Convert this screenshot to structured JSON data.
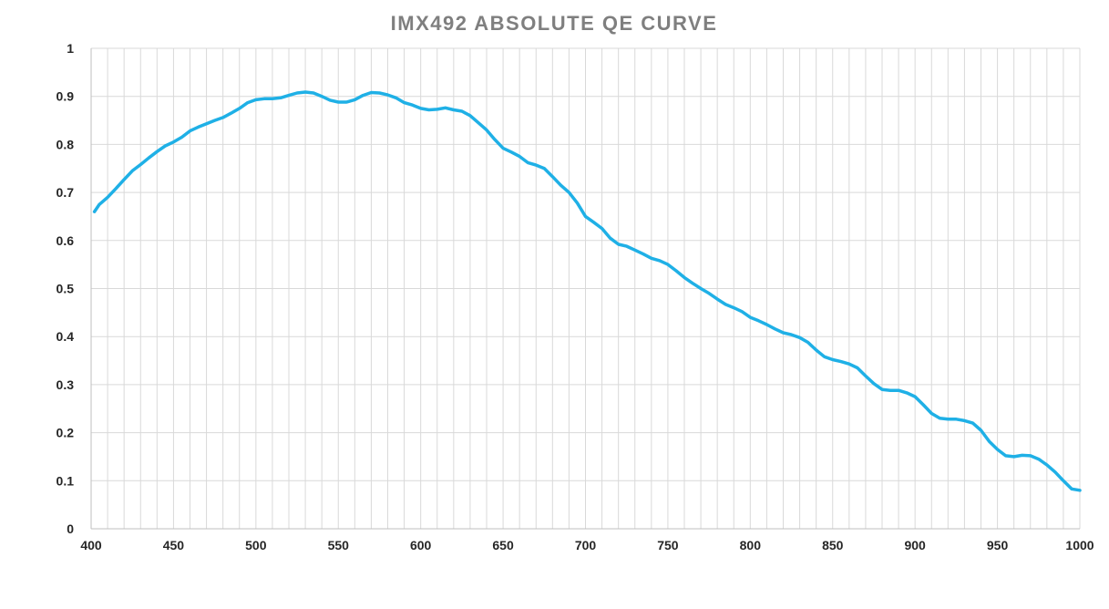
{
  "chart_data": {
    "type": "line",
    "title": "IMX492 ABSOLUTE QE CURVE",
    "xlabel": "",
    "ylabel": "",
    "xlim": [
      400,
      1000
    ],
    "ylim": [
      0,
      1
    ],
    "x_ticks": [
      "400",
      "450",
      "500",
      "550",
      "600",
      "650",
      "700",
      "750",
      "800",
      "850",
      "900",
      "950",
      "1000"
    ],
    "y_ticks": [
      "0",
      "0.1",
      "0.2",
      "0.3",
      "0.4",
      "0.5",
      "0.6",
      "0.7",
      "0.8",
      "0.9",
      "1"
    ],
    "grid": true,
    "legend": "none",
    "colors": {
      "line": "#1fb0e6"
    },
    "series": [
      {
        "x": [
          402,
          405,
          410,
          415,
          420,
          425,
          430,
          435,
          440,
          445,
          450,
          455,
          460,
          465,
          470,
          475,
          480,
          485,
          490,
          495,
          500,
          505,
          510,
          515,
          520,
          525,
          530,
          535,
          540,
          545,
          550,
          555,
          560,
          565,
          570,
          575,
          580,
          585,
          590,
          595,
          600,
          605,
          610,
          615,
          620,
          625,
          630,
          635,
          640,
          645,
          650,
          655,
          660,
          665,
          670,
          675,
          680,
          685,
          690,
          695,
          700,
          705,
          710,
          715,
          720,
          725,
          730,
          735,
          740,
          745,
          750,
          755,
          760,
          765,
          770,
          775,
          780,
          785,
          790,
          795,
          800,
          805,
          810,
          815,
          820,
          825,
          830,
          835,
          840,
          845,
          850,
          855,
          860,
          865,
          870,
          875,
          880,
          885,
          890,
          895,
          900,
          905,
          910,
          915,
          920,
          925,
          930,
          935,
          940,
          945,
          950,
          955,
          960,
          965,
          970,
          975,
          980,
          985,
          990,
          995,
          1000
        ],
        "values": [
          0.66,
          0.675,
          0.69,
          0.708,
          0.727,
          0.745,
          0.758,
          0.772,
          0.785,
          0.797,
          0.805,
          0.815,
          0.828,
          0.836,
          0.843,
          0.85,
          0.856,
          0.865,
          0.875,
          0.887,
          0.893,
          0.895,
          0.895,
          0.897,
          0.902,
          0.907,
          0.909,
          0.907,
          0.9,
          0.892,
          0.888,
          0.888,
          0.893,
          0.902,
          0.908,
          0.907,
          0.903,
          0.897,
          0.887,
          0.882,
          0.875,
          0.872,
          0.873,
          0.876,
          0.872,
          0.869,
          0.86,
          0.845,
          0.83,
          0.81,
          0.792,
          0.784,
          0.775,
          0.762,
          0.757,
          0.75,
          0.733,
          0.715,
          0.7,
          0.678,
          0.65,
          0.638,
          0.625,
          0.605,
          0.592,
          0.588,
          0.58,
          0.572,
          0.563,
          0.558,
          0.55,
          0.537,
          0.523,
          0.511,
          0.5,
          0.49,
          0.478,
          0.467,
          0.46,
          0.452,
          0.44,
          0.433,
          0.425,
          0.416,
          0.408,
          0.404,
          0.398,
          0.388,
          0.372,
          0.358,
          0.352,
          0.348,
          0.343,
          0.335,
          0.318,
          0.302,
          0.29,
          0.288,
          0.288,
          0.283,
          0.275,
          0.258,
          0.24,
          0.23,
          0.228,
          0.228,
          0.225,
          0.22,
          0.205,
          0.182,
          0.165,
          0.152,
          0.15,
          0.153,
          0.152,
          0.145,
          0.133,
          0.118,
          0.1,
          0.083,
          0.08
        ]
      }
    ]
  }
}
